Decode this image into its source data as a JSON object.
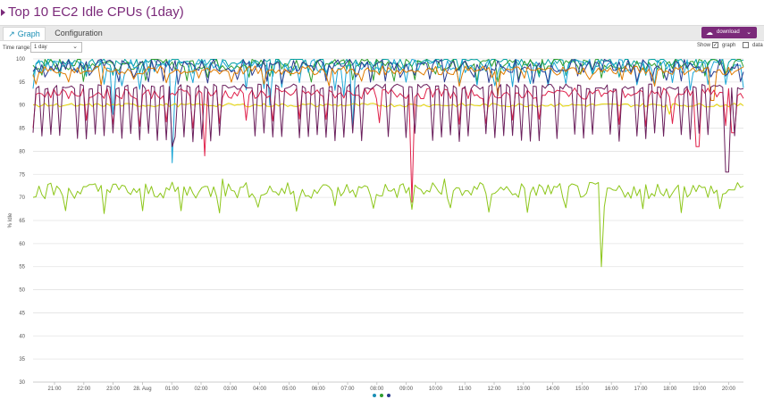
{
  "title": "Top 10 EC2 Idle CPUs (1day)",
  "tabs": [
    {
      "label": "Graph",
      "active": true,
      "icon": "chart-line-icon"
    },
    {
      "label": "Configuration",
      "active": false
    }
  ],
  "download": {
    "label": "download",
    "icon": "cloud-download-icon"
  },
  "controls": {
    "time_range_label": "Time range:",
    "time_range_value": "1 day",
    "show_label": "Show",
    "graph_label": "graph",
    "graph_checked": true,
    "data_label": "data",
    "data_checked": false
  },
  "colors": {
    "accent": "#7b2a7a",
    "tab_active": "#1a8fb5"
  },
  "chart_data": {
    "type": "line",
    "title": "",
    "ylabel": "% Idle",
    "xlabel": "",
    "ylim": [
      30,
      100
    ],
    "yticks": [
      30,
      35,
      40,
      45,
      50,
      55,
      60,
      65,
      70,
      75,
      80,
      85,
      90,
      95,
      100
    ],
    "x_tick_labels": [
      "21:00",
      "22:00",
      "23:00",
      "28. Aug",
      "01:00",
      "02:00",
      "03:00",
      "04:00",
      "05:00",
      "06:00",
      "07:00",
      "08:00",
      "09:00",
      "10:00",
      "11:00",
      "12:00",
      "13:00",
      "14:00",
      "15:00",
      "16:00",
      "17:00",
      "18:00",
      "19:00",
      "20:00"
    ],
    "grid": true,
    "legend": "none",
    "series": [
      {
        "color": "#00a0a0",
        "base": 99.5,
        "amp": 1.2,
        "dip_every": 9,
        "dip_to": 97,
        "spikes": []
      },
      {
        "color": "#2e9e2e",
        "base": 99,
        "amp": 1.5,
        "dip_every": 7,
        "dip_to": 96,
        "spikes": []
      },
      {
        "color": "#1aa6d6",
        "base": 98.5,
        "amp": 1.5,
        "dip_every": 6,
        "dip_to": 94,
        "spikes": [
          [
            4.0,
            77.5
          ],
          [
            2.0,
            88
          ],
          [
            10.1,
            85
          ],
          [
            7.3,
            90
          ],
          [
            9.8,
            92
          ]
        ]
      },
      {
        "color": "#2a3a8f",
        "base": 98.5,
        "amp": 1.5,
        "dip_every": 5,
        "dip_to": 95.5,
        "spikes": []
      },
      {
        "color": "#e07b00",
        "base": 97.5,
        "amp": 1.0,
        "dip_every": 11,
        "dip_to": 95,
        "spikes": [
          [
            15.0,
            92
          ],
          [
            22.3,
            91
          ]
        ]
      },
      {
        "color": "#e5d400",
        "base": 90,
        "amp": 0.4,
        "dip_every": 40,
        "dip_to": 89,
        "spikes": []
      },
      {
        "color": "#e0204a",
        "base": 92.5,
        "amp": 1.2,
        "dip_every": 9,
        "dip_to": 86,
        "spikes": [
          [
            5.1,
            79
          ],
          [
            12.1,
            69
          ],
          [
            8.3,
            87
          ],
          [
            21.8,
            81
          ],
          [
            23.0,
            84
          ]
        ]
      },
      {
        "color": "#6a1f5c",
        "base": 94,
        "amp": 0.6,
        "dip_every": 3,
        "dip_to": 83,
        "spikes": [
          [
            4.0,
            81
          ],
          [
            22.8,
            75.5
          ]
        ]
      },
      {
        "color": "#8dc61a",
        "base": 71.5,
        "amp": 1.8,
        "dip_every": 13,
        "dip_to": 67.5,
        "spikes": [
          [
            18.5,
            55
          ],
          [
            18.8,
            72
          ],
          [
            5.7,
            74
          ],
          [
            13.2,
            74
          ]
        ]
      }
    ]
  },
  "pager": [
    {
      "color": "#1a8fb5"
    },
    {
      "color": "#2e9e2e"
    },
    {
      "color": "#2a3a8f"
    }
  ]
}
